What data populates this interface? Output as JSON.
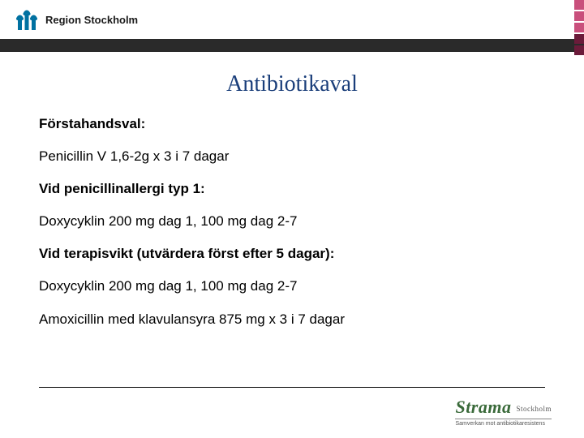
{
  "header": {
    "org_name": "Region Stockholm",
    "logo_color": "#0071a1",
    "bar_color": "#2a2a2a"
  },
  "side_decor": {
    "colors": [
      "#c94f7c",
      "#c94f7c",
      "#c94f7c",
      "#6b1b3a",
      "#6b1b3a"
    ]
  },
  "title": {
    "text": "Antibiotikaval",
    "color": "#1a3e7a",
    "fontsize": 28
  },
  "body": {
    "fontsize": 17,
    "lines": [
      {
        "text": "Förstahandsval:",
        "bold": true
      },
      {
        "text": "Penicillin V 1,6-2g x 3 i 7 dagar",
        "bold": false
      },
      {
        "text": "Vid penicillinallergi typ 1:",
        "bold": true
      },
      {
        "text": "Doxycyklin 200 mg dag 1, 100 mg dag 2-7",
        "bold": false
      },
      {
        "text": "Vid terapisvikt (utvärdera först efter 5 dagar):",
        "bold": true
      },
      {
        "text": "Doxycyklin 200 mg dag 1, 100 mg dag 2-7",
        "bold": false
      },
      {
        "text": "Amoxicillin med klavulansyra 875 mg x 3 i 7 dagar",
        "bold": false
      }
    ]
  },
  "footer": {
    "brand": "Strama",
    "sub": "Stockholm",
    "tagline": "Samverkan mot antibiotikaresistens"
  }
}
